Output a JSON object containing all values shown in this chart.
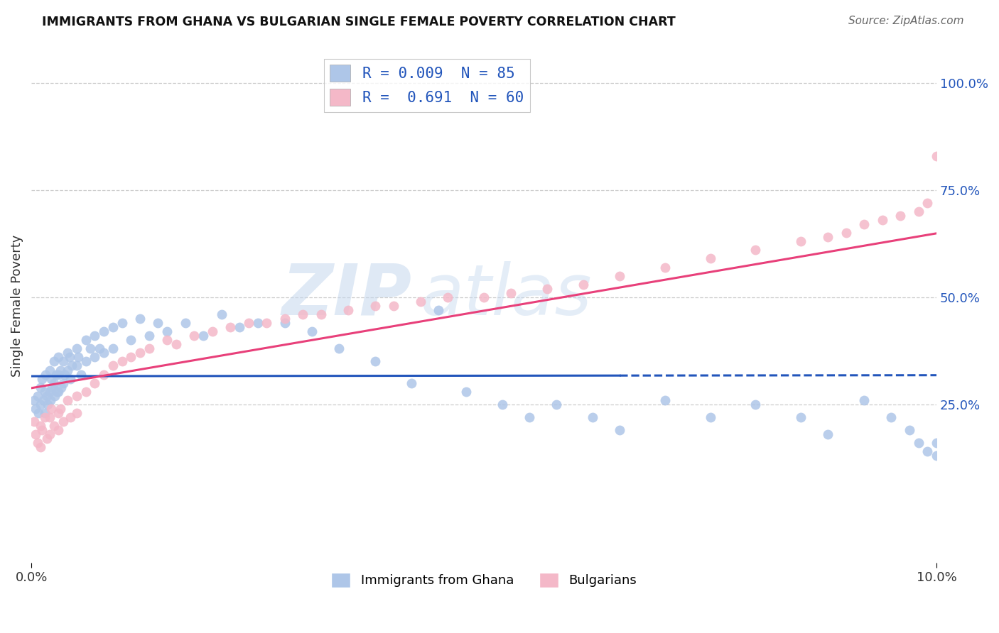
{
  "title": "IMMIGRANTS FROM GHANA VS BULGARIAN SINGLE FEMALE POVERTY CORRELATION CHART",
  "source": "Source: ZipAtlas.com",
  "ylabel": "Single Female Poverty",
  "ghana_color": "#aec6e8",
  "bulgarian_color": "#f4b8c8",
  "ghana_line_color": "#2255bb",
  "bulgarian_line_color": "#e8407a",
  "watermark_zip": "ZIP",
  "watermark_atlas": "atlas",
  "ghana_R": 0.009,
  "ghana_N": 85,
  "bulgarian_R": 0.691,
  "bulgarian_N": 60,
  "xmin": 0.0,
  "xmax": 0.1,
  "ymin": -0.12,
  "ymax": 1.08,
  "ghana_line_solid_end": 0.065,
  "ghana_scatter_x": [
    0.0003,
    0.0005,
    0.0007,
    0.0008,
    0.001,
    0.001,
    0.0012,
    0.0013,
    0.0015,
    0.0015,
    0.0016,
    0.0017,
    0.0018,
    0.002,
    0.002,
    0.0021,
    0.0022,
    0.0023,
    0.0025,
    0.0025,
    0.0026,
    0.0027,
    0.0028,
    0.003,
    0.003,
    0.003,
    0.0032,
    0.0033,
    0.0035,
    0.0035,
    0.0037,
    0.004,
    0.004,
    0.0042,
    0.0043,
    0.0045,
    0.005,
    0.005,
    0.0052,
    0.0055,
    0.006,
    0.006,
    0.0065,
    0.007,
    0.007,
    0.0075,
    0.008,
    0.008,
    0.009,
    0.009,
    0.01,
    0.011,
    0.012,
    0.013,
    0.014,
    0.015,
    0.017,
    0.019,
    0.021,
    0.023,
    0.025,
    0.028,
    0.031,
    0.034,
    0.038,
    0.042,
    0.045,
    0.048,
    0.052,
    0.055,
    0.058,
    0.062,
    0.065,
    0.07,
    0.075,
    0.08,
    0.085,
    0.088,
    0.092,
    0.095,
    0.097,
    0.098,
    0.099,
    0.1,
    0.1
  ],
  "ghana_scatter_y": [
    0.26,
    0.24,
    0.27,
    0.23,
    0.29,
    0.25,
    0.31,
    0.26,
    0.28,
    0.23,
    0.32,
    0.27,
    0.25,
    0.33,
    0.28,
    0.26,
    0.31,
    0.29,
    0.35,
    0.3,
    0.27,
    0.32,
    0.28,
    0.36,
    0.32,
    0.28,
    0.33,
    0.29,
    0.35,
    0.3,
    0.32,
    0.37,
    0.33,
    0.36,
    0.31,
    0.34,
    0.38,
    0.34,
    0.36,
    0.32,
    0.4,
    0.35,
    0.38,
    0.41,
    0.36,
    0.38,
    0.42,
    0.37,
    0.43,
    0.38,
    0.44,
    0.4,
    0.45,
    0.41,
    0.44,
    0.42,
    0.44,
    0.41,
    0.46,
    0.43,
    0.44,
    0.44,
    0.42,
    0.38,
    0.35,
    0.3,
    0.47,
    0.28,
    0.25,
    0.22,
    0.25,
    0.22,
    0.19,
    0.26,
    0.22,
    0.25,
    0.22,
    0.18,
    0.26,
    0.22,
    0.19,
    0.16,
    0.14,
    0.16,
    0.13
  ],
  "bulgarian_scatter_x": [
    0.0003,
    0.0005,
    0.0007,
    0.001,
    0.001,
    0.0012,
    0.0015,
    0.0017,
    0.002,
    0.002,
    0.0022,
    0.0025,
    0.003,
    0.003,
    0.0032,
    0.0035,
    0.004,
    0.0043,
    0.005,
    0.005,
    0.006,
    0.007,
    0.008,
    0.009,
    0.01,
    0.011,
    0.012,
    0.013,
    0.015,
    0.016,
    0.018,
    0.02,
    0.022,
    0.024,
    0.026,
    0.028,
    0.03,
    0.032,
    0.035,
    0.038,
    0.04,
    0.043,
    0.046,
    0.05,
    0.053,
    0.057,
    0.061,
    0.065,
    0.07,
    0.075,
    0.08,
    0.085,
    0.088,
    0.09,
    0.092,
    0.094,
    0.096,
    0.098,
    0.099,
    0.1
  ],
  "bulgarian_scatter_y": [
    0.21,
    0.18,
    0.16,
    0.2,
    0.15,
    0.19,
    0.22,
    0.17,
    0.22,
    0.18,
    0.24,
    0.2,
    0.23,
    0.19,
    0.24,
    0.21,
    0.26,
    0.22,
    0.27,
    0.23,
    0.28,
    0.3,
    0.32,
    0.34,
    0.35,
    0.36,
    0.37,
    0.38,
    0.4,
    0.39,
    0.41,
    0.42,
    0.43,
    0.44,
    0.44,
    0.45,
    0.46,
    0.46,
    0.47,
    0.48,
    0.48,
    0.49,
    0.5,
    0.5,
    0.51,
    0.52,
    0.53,
    0.55,
    0.57,
    0.59,
    0.61,
    0.63,
    0.64,
    0.65,
    0.67,
    0.68,
    0.69,
    0.7,
    0.72,
    0.83
  ]
}
